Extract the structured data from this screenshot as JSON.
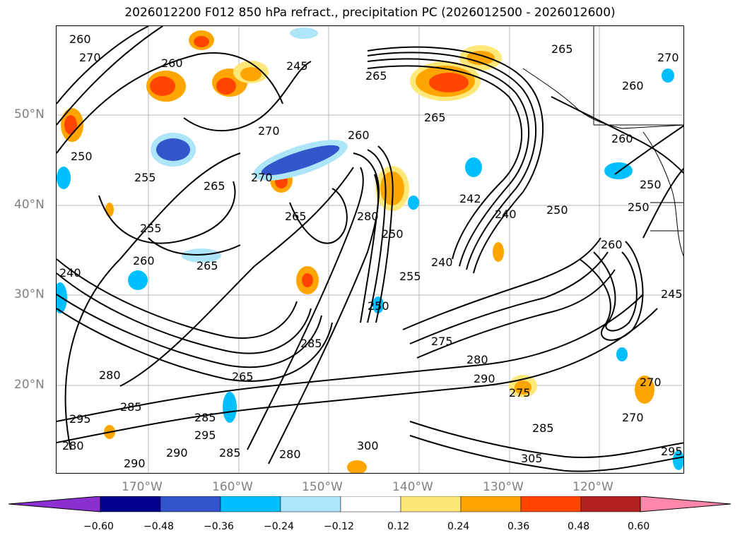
{
  "title": "2026012200 F012 850 hPa refract., precipitation PC (2026012500 - 2026012600)",
  "lat_labels": [
    "50°N",
    "40°N",
    "30°N",
    "20°N"
  ],
  "lon_labels": [
    "170°W",
    "160°W",
    "150°W",
    "140°W",
    "130°W",
    "120°W"
  ],
  "contour_labels": [
    "260",
    "270",
    "260",
    "245",
    "265",
    "265",
    "270",
    "260",
    "270",
    "250",
    "265",
    "255",
    "260",
    "265",
    "270",
    "255",
    "260",
    "265",
    "240",
    "265",
    "280",
    "250",
    "250",
    "240",
    "255",
    "242",
    "240",
    "250",
    "250",
    "260",
    "245",
    "260",
    "250",
    "270",
    "275",
    "280",
    "290",
    "285",
    "275",
    "270",
    "265",
    "285",
    "280",
    "285",
    "295",
    "295",
    "290",
    "280",
    "290",
    "285",
    "280",
    "300",
    "305",
    "285",
    "295"
  ],
  "colorbar": {
    "tick_labels": [
      "−0.60",
      "−0.48",
      "−0.36",
      "−0.24",
      "−0.12",
      "0.12",
      "0.24",
      "0.36",
      "0.48",
      "0.60"
    ],
    "colors": [
      "#8b2fd3",
      "#00008b",
      "#3355cc",
      "#00bfff",
      "#ade6f9",
      "#ffffff",
      "#ffe87a",
      "#ffa500",
      "#ff4500",
      "#b22222",
      "#ff88aa"
    ]
  }
}
